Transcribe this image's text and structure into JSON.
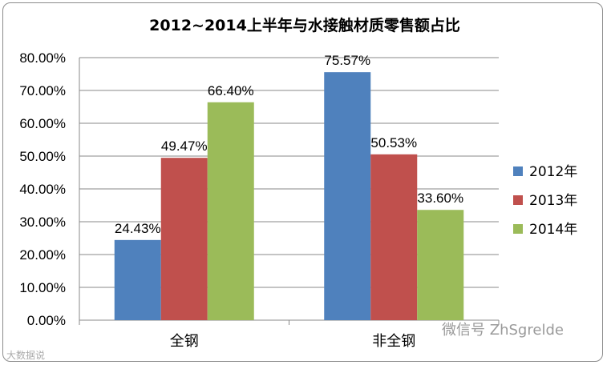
{
  "chart_data": {
    "type": "bar",
    "title": "2012~2014上半年与水接触材质零售额占比",
    "categories": [
      "全钢",
      "非全钢"
    ],
    "series": [
      {
        "name": "2012年",
        "values": [
          24.43,
          75.57
        ],
        "color": "#4f81bd"
      },
      {
        "name": "2013年",
        "values": [
          49.47,
          50.53
        ],
        "color": "#c0504d"
      },
      {
        "name": "2014年",
        "values": [
          66.4,
          33.6
        ],
        "color": "#9bbb59"
      }
    ],
    "data_labels": [
      [
        "24.43%",
        "75.57%"
      ],
      [
        "49.47%",
        "50.53%"
      ],
      [
        "66.40%",
        "33.60%"
      ]
    ],
    "y_ticks": [
      "0.00%",
      "10.00%",
      "20.00%",
      "30.00%",
      "40.00%",
      "50.00%",
      "60.00%",
      "70.00%",
      "80.00%"
    ],
    "ylim": [
      0,
      80
    ],
    "grid": true,
    "legend_position": "right"
  },
  "watermark": {
    "bottom_right": "微信号 ZhSgrelde",
    "bottom_left": "大数据说"
  }
}
